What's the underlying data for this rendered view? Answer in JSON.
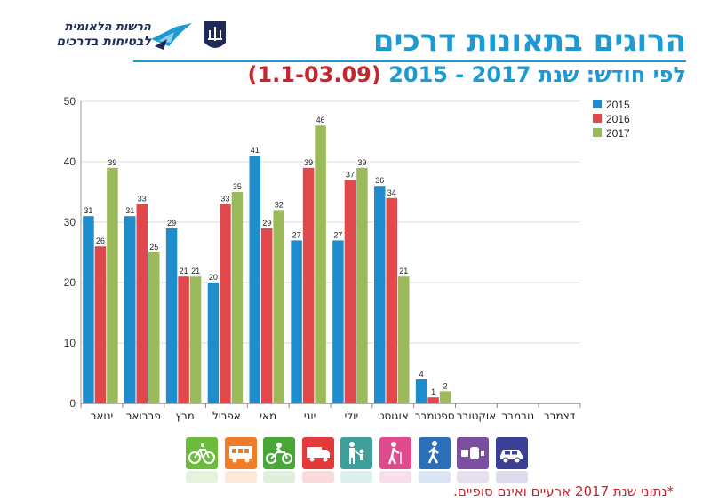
{
  "header": {
    "logo_line1": "הרשות הלאומית",
    "logo_line2": "לבטיחות בדרכים",
    "title": "הרוגים בתאונות דרכים",
    "subtitle": "לפי חודש: שנת 2017 - 2015 ",
    "subtitle_range": "(1.1-03.09)"
  },
  "footnote": "*נתוני שנת 2017 ארעיים ואינם סופיים.",
  "colors": {
    "accent": "#1c9bd2",
    "highlight": "#c4262e"
  },
  "mode_icons": [
    {
      "name": "bicycle-icon",
      "color": "#6dbb3c"
    },
    {
      "name": "bus-icon",
      "color": "#f07c28"
    },
    {
      "name": "motorcycle-icon",
      "color": "#4ba63a"
    },
    {
      "name": "truck-icon",
      "color": "#e2393a"
    },
    {
      "name": "pedestrian-with-child-icon",
      "color": "#3d9e9a"
    },
    {
      "name": "elderly-pedestrian-icon",
      "color": "#e04b8e"
    },
    {
      "name": "pedestrian-icon",
      "color": "#2a6fb7"
    },
    {
      "name": "car-seat-icon",
      "color": "#7b4ea0"
    },
    {
      "name": "car-icon",
      "color": "#3b3f96"
    }
  ],
  "chart_data": {
    "type": "bar",
    "categories": [
      "ינואר",
      "פברואר",
      "מרץ",
      "אפריל",
      "מאי",
      "יוני",
      "יולי",
      "אוגוסט",
      "ספטמבר",
      "אוקטובר",
      "נובמבר",
      "דצמבר"
    ],
    "series": [
      {
        "name": "2015",
        "color": "#1f8ccc",
        "values": [
          31,
          31,
          29,
          20,
          41,
          27,
          27,
          36,
          4,
          null,
          null,
          null
        ]
      },
      {
        "name": "2016",
        "color": "#e0484b",
        "values": [
          26,
          33,
          21,
          33,
          29,
          39,
          37,
          34,
          1,
          null,
          null,
          null
        ]
      },
      {
        "name": "2017",
        "color": "#9aba5b",
        "values": [
          39,
          25,
          21,
          35,
          32,
          46,
          39,
          21,
          2,
          null,
          null,
          null
        ]
      }
    ],
    "ylim": [
      0,
      50
    ],
    "yticks": [
      0,
      10,
      20,
      30,
      40,
      50
    ],
    "grid": true,
    "legend": "top-right",
    "data_labels": true
  }
}
